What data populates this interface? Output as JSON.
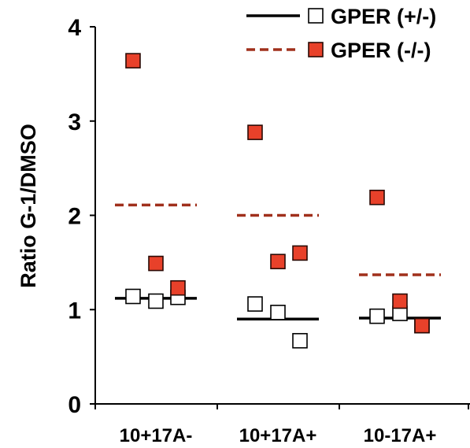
{
  "chart_data": {
    "type": "scatter",
    "ylabel": "Ratio G-1/DMSO",
    "ylim": [
      0,
      4
    ],
    "yticks": [
      "0",
      "1",
      "2",
      "3",
      "4"
    ],
    "categories": [
      "10+17A-",
      "10+17A+",
      "10-17A+"
    ],
    "grid": false,
    "legend_position": "top-right",
    "series": [
      {
        "name": "GPER (+/-)",
        "marker": "open-square",
        "line_style": "solid",
        "color": "#000000",
        "mean": [
          1.12,
          0.9,
          0.91
        ],
        "points": [
          [
            1.14,
            1.09,
            1.13
          ],
          [
            1.06,
            0.97,
            0.67
          ],
          [
            0.93,
            0.96,
            0.83
          ]
        ]
      },
      {
        "name": "GPER (-/-)",
        "marker": "filled-square",
        "line_style": "dashed",
        "color": "#e8412a",
        "line_color": "#a0301c",
        "mean": [
          2.11,
          2.0,
          1.37
        ],
        "points": [
          [
            3.64,
            1.49,
            1.23
          ],
          [
            2.88,
            1.51,
            1.6
          ],
          [
            2.19,
            1.09,
            0.83
          ]
        ]
      }
    ]
  }
}
